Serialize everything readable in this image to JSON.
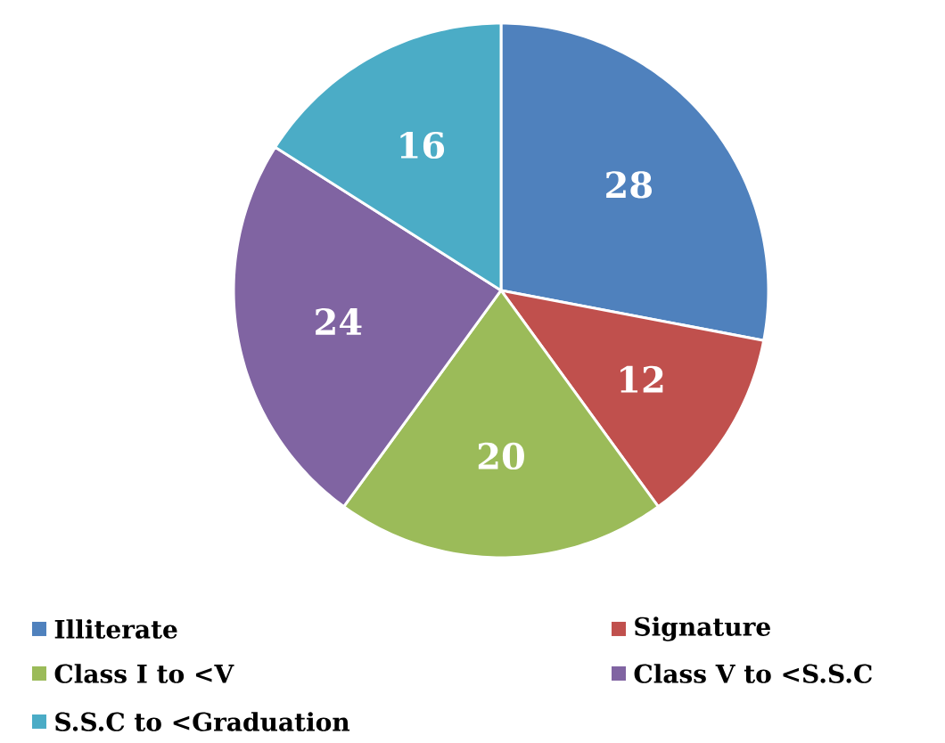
{
  "chart_data": {
    "type": "pie",
    "categories": [
      "Illiterate",
      "Signature",
      "Class I to <V",
      "Class V to <S.S.C",
      "S.S.C to <Graduation"
    ],
    "values": [
      28,
      12,
      20,
      24,
      16
    ],
    "colors": [
      "#4f81bd",
      "#c0504d",
      "#9bbb59",
      "#8064a2",
      "#4bacc6"
    ],
    "data_labels": true,
    "legend": "bottom"
  }
}
